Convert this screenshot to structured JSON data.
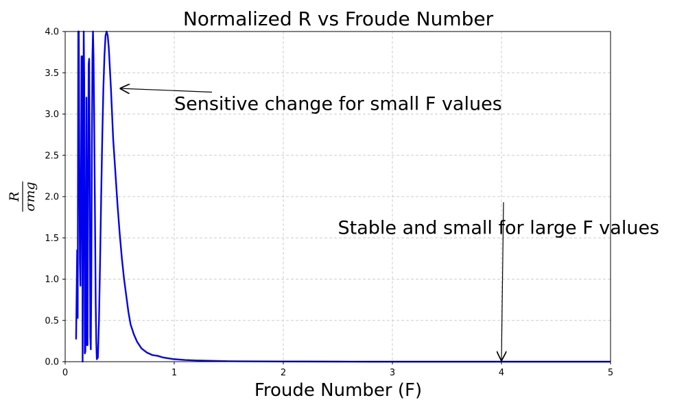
{
  "chart_data": {
    "type": "line",
    "title": "Normalized R vs Froude Number",
    "xlabel": "Froude Number (F)",
    "ylabel": {
      "numerator": "R",
      "denominator": "σmg"
    },
    "xlim": [
      0,
      5
    ],
    "ylim": [
      0,
      4.0
    ],
    "xticks": [
      "0",
      "1",
      "2",
      "3",
      "4",
      "5"
    ],
    "yticks": [
      "0.0",
      "0.5",
      "1.0",
      "1.5",
      "2.0",
      "2.5",
      "3.0",
      "3.5",
      "4.0"
    ],
    "grid": true,
    "series": [
      {
        "color": "#0000ee",
        "x": [
          0.1,
          0.11,
          0.115,
          0.12,
          0.125,
          0.13,
          0.135,
          0.14,
          0.145,
          0.15,
          0.155,
          0.16,
          0.165,
          0.17,
          0.175,
          0.18,
          0.185,
          0.19,
          0.195,
          0.2,
          0.205,
          0.21,
          0.215,
          0.22,
          0.225,
          0.23,
          0.235,
          0.24,
          0.245,
          0.25,
          0.255,
          0.26,
          0.265,
          0.27,
          0.275,
          0.28,
          0.285,
          0.29,
          0.3,
          0.31,
          0.32,
          0.33,
          0.34,
          0.35,
          0.36,
          0.37,
          0.38,
          0.39,
          0.4,
          0.41,
          0.42,
          0.43,
          0.44,
          0.46,
          0.48,
          0.5,
          0.52,
          0.54,
          0.56,
          0.58,
          0.6,
          0.63,
          0.66,
          0.7,
          0.75,
          0.8,
          0.85,
          0.9,
          0.95,
          1.0,
          1.1,
          1.2,
          1.3,
          1.4,
          1.5,
          1.6,
          1.8,
          2.0,
          2.2,
          2.5,
          2.8,
          3.0,
          3.5,
          4.0,
          4.5,
          5.0
        ],
        "y": [
          0.27,
          1.35,
          0.53,
          4.0,
          4.0,
          2.5,
          1.2,
          0.92,
          2.0,
          3.7,
          3.7,
          0.0,
          2.0,
          4.0,
          3.4,
          0.1,
          0.12,
          1.2,
          3.2,
          0.2,
          0.2,
          2.0,
          3.6,
          3.67,
          2.5,
          0.3,
          0.15,
          1.0,
          2.6,
          3.7,
          4.0,
          3.7,
          3.1,
          2.3,
          1.5,
          0.7,
          0.25,
          0.03,
          0.05,
          0.5,
          1.2,
          2.0,
          2.7,
          3.3,
          3.7,
          3.95,
          4.0,
          3.95,
          3.8,
          3.55,
          3.3,
          3.0,
          2.7,
          2.3,
          1.9,
          1.55,
          1.25,
          1.0,
          0.8,
          0.6,
          0.45,
          0.33,
          0.24,
          0.16,
          0.11,
          0.08,
          0.07,
          0.05,
          0.04,
          0.03,
          0.02,
          0.015,
          0.012,
          0.009,
          0.006,
          0.005,
          0.004,
          0.003,
          0.002,
          0.001,
          0.0,
          0.0,
          0.0,
          0.0,
          0.0,
          0.0
        ]
      }
    ],
    "annotations": [
      {
        "text": "Sensitive change for small F values",
        "text_xy": [
          1.0,
          3.0
        ],
        "arrow_to": [
          0.51,
          3.31
        ]
      },
      {
        "text": "Stable and small for large F values",
        "text_xy": [
          2.5,
          1.5
        ],
        "arrow_to": [
          4.0,
          0.02
        ]
      }
    ]
  }
}
